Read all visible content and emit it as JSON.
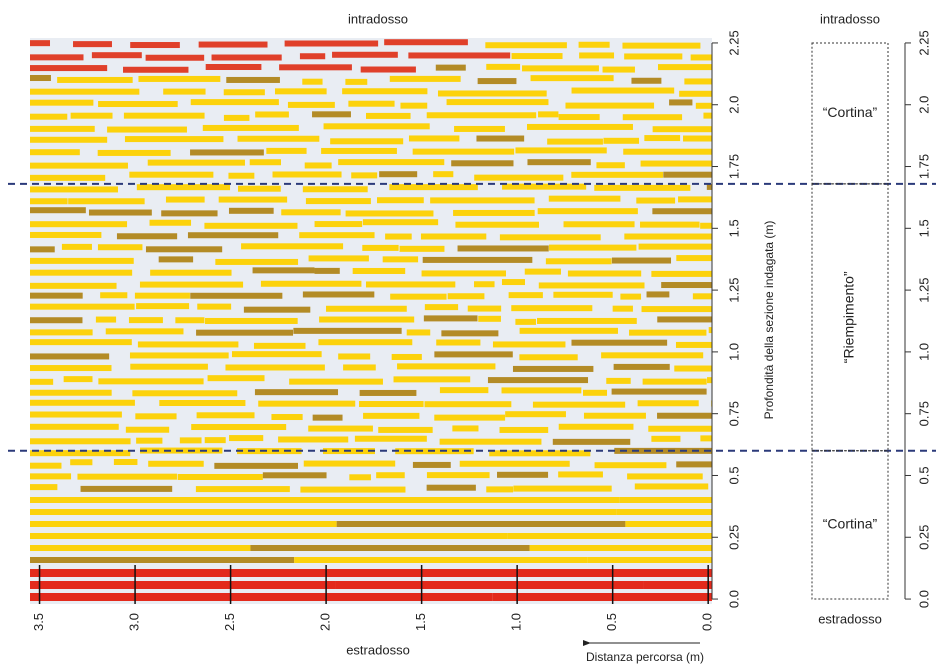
{
  "chart_data": {
    "type": "radargram",
    "top_label": "intradosso",
    "bottom_label": "estradosso",
    "xlabel": "Distanza percorsa (m)",
    "ylabel": "Profondità della sezione indagata (m)",
    "xlim": [
      3.55,
      -0.02
    ],
    "xticks": [
      {
        "value": 3.5,
        "label": "3.5"
      },
      {
        "value": 3,
        "label": "3.0"
      },
      2.5,
      {
        "value": 2,
        "label": "2.0"
      },
      1.5,
      {
        "value": 1,
        "label": "1.0"
      },
      0.5,
      {
        "value": 0,
        "label": "0.0"
      }
    ],
    "ylim": [
      -0.02,
      2.27
    ],
    "yticks": [
      {
        "value": 0,
        "label": "0.0"
      },
      0.25,
      0.5,
      0.75,
      {
        "value": 1,
        "label": "1.0"
      },
      1.25,
      1.5,
      1.75,
      {
        "value": 2,
        "label": "2.0"
      },
      2.25
    ],
    "reference_lines": [
      1.68,
      0.6
    ],
    "section": {
      "top_label": "intradosso",
      "bottom_label": "estradosso",
      "layers": [
        {
          "label": "“Cortina”",
          "from": 1.68,
          "to": 2.25
        },
        {
          "label": "“Riempimento”",
          "from": 0.6,
          "to": 1.68
        },
        {
          "label": "“Cortina”",
          "from": 0,
          "to": 0.6
        }
      ]
    }
  }
}
